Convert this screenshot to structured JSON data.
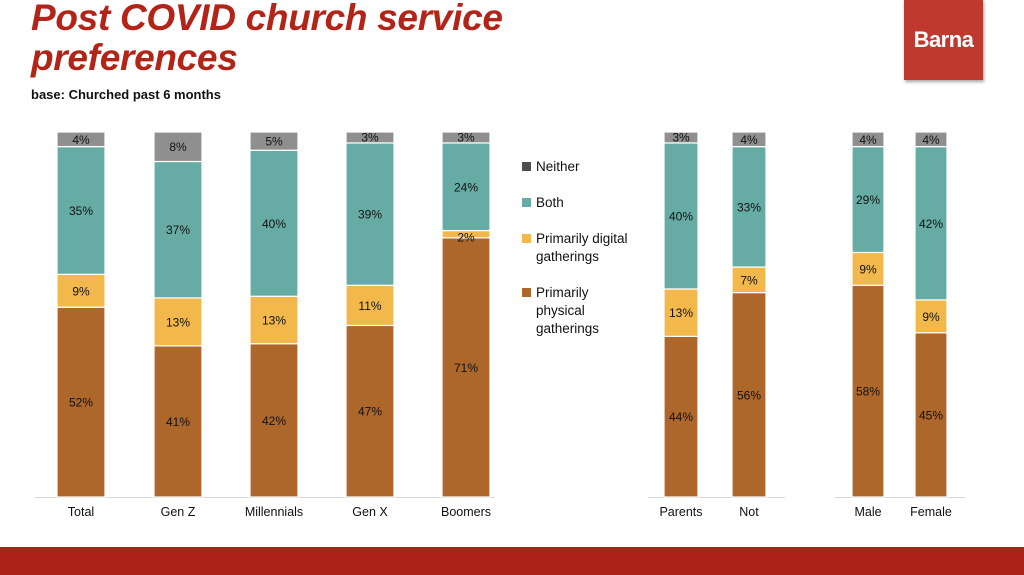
{
  "header": {
    "title": "Post COVID church service preferences",
    "subtitle": "base: Churched past 6 months",
    "logo_text": "Barna"
  },
  "colors": {
    "title": "#b22418",
    "logo": "#c0392f",
    "footer": "#ad2218",
    "neither": "#8f8f8f",
    "both": "#66aca4",
    "digital": "#f2b84b",
    "physical": "#ad672b"
  },
  "chart_data": {
    "type": "bar",
    "stacked": true,
    "title": "Post COVID church service preferences",
    "subtitle": "base: Churched past 6 months",
    "xlabel": "",
    "ylabel": "",
    "ylim": [
      0,
      100
    ],
    "grid": false,
    "legend_position": "right",
    "legend": [
      {
        "key": "neither",
        "label": "Neither",
        "color_legend": "#4d4d4d"
      },
      {
        "key": "both",
        "label": "Both",
        "color_legend": "#66aca4"
      },
      {
        "key": "digital",
        "label": "Primarily digital gatherings",
        "color_legend": "#f2b84b"
      },
      {
        "key": "physical",
        "label": "Primarily physical gatherings",
        "color_legend": "#ad672b"
      }
    ],
    "groups": [
      {
        "name": "generation",
        "categories": [
          "Total",
          "Gen Z",
          "Millennials",
          "Gen X",
          "Boomers"
        ]
      },
      {
        "name": "parents",
        "categories": [
          "Parents",
          "Not"
        ]
      },
      {
        "name": "gender",
        "categories": [
          "Male",
          "Female"
        ]
      }
    ],
    "categories": [
      "Total",
      "Gen Z",
      "Millennials",
      "Gen X",
      "Boomers",
      "Parents",
      "Not",
      "Male",
      "Female"
    ],
    "series": [
      {
        "name": "Primarily physical gatherings",
        "key": "physical",
        "values": [
          52,
          41,
          42,
          47,
          71,
          44,
          56,
          58,
          45
        ]
      },
      {
        "name": "Primarily digital gatherings",
        "key": "digital",
        "values": [
          9,
          13,
          13,
          11,
          2,
          13,
          7,
          9,
          9
        ]
      },
      {
        "name": "Both",
        "key": "both",
        "values": [
          35,
          37,
          40,
          39,
          24,
          40,
          33,
          29,
          42
        ]
      },
      {
        "name": "Neither",
        "key": "neither",
        "values": [
          4,
          8,
          5,
          3,
          3,
          3,
          4,
          4,
          4
        ]
      }
    ],
    "data_labels": [
      [
        "52%",
        "41%",
        "42%",
        "47%",
        "71%",
        "44%",
        "56%",
        "58%",
        "45%"
      ],
      [
        "9%",
        "13%",
        "13%",
        "11%",
        "2%",
        "13%",
        "7%",
        "9%",
        "9%"
      ],
      [
        "35%",
        "37%",
        "40%",
        "39%",
        "24%",
        "40%",
        "33%",
        "29%",
        "42%"
      ],
      [
        "4%",
        "8%",
        "5%",
        "3%",
        "3%",
        "3%",
        "4%",
        "4%",
        "4%"
      ]
    ]
  }
}
